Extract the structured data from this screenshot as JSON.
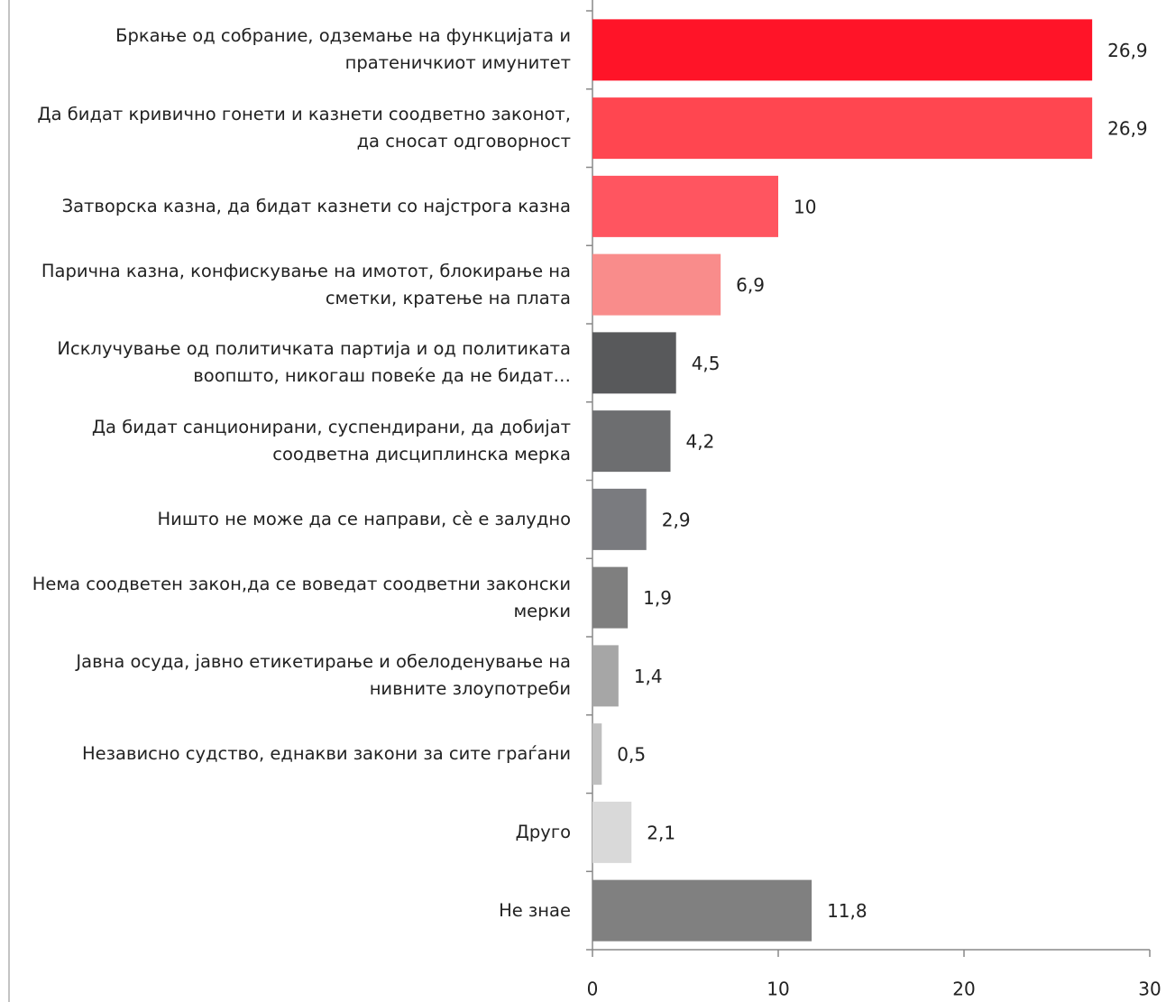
{
  "chart_data": {
    "type": "bar",
    "orientation": "horizontal",
    "categories": [
      "Бркање од собрание, одземање на функцијата и пратеничкиот имунитет",
      "Да бидат кривично гонети и казнети соодветно законот, да сносат одговорност",
      "Затворска казна, да бидат казнети со најстрога казна",
      "Парична казна, конфискување на имотот, блокирање на сметки, кратење на плата",
      "Исклучување од политичката партија и од политиката воопшто, никогаш повеќе да не бидат…",
      "Да бидат санционирани, суспендирани, да добијат соодветна дисциплинска мерка",
      "Ништо не може да се направи, сѐ е залудно",
      "Нема соодветен закон,да се воведат соодветни законски мерки",
      "Јавна осуда, јавно етикетирање и обелоденување на нивните злоупотреби",
      "Независно судство, еднакви закони за сите граѓани",
      "Друго",
      "Не знае"
    ],
    "values": [
      26.9,
      26.9,
      10,
      6.9,
      4.5,
      4.2,
      2.9,
      1.9,
      1.4,
      0.5,
      2.1,
      11.8
    ],
    "value_labels": [
      "26,9",
      "26,9",
      "10",
      "6,9",
      "4,5",
      "4,2",
      "2,9",
      "1,9",
      "1,4",
      "0,5",
      "2,1",
      "11,8"
    ],
    "colors": [
      "#ff1428",
      "#ff4650",
      "#ff5560",
      "#f98c8b",
      "#58595b",
      "#6d6e70",
      "#7a7b7f",
      "#7f7f7f",
      "#a6a6a6",
      "#bfbfbf",
      "#d9d9d9",
      "#808080"
    ],
    "xlim": [
      0,
      30
    ],
    "xticks": [
      0,
      10,
      20,
      30
    ],
    "grid": false
  }
}
